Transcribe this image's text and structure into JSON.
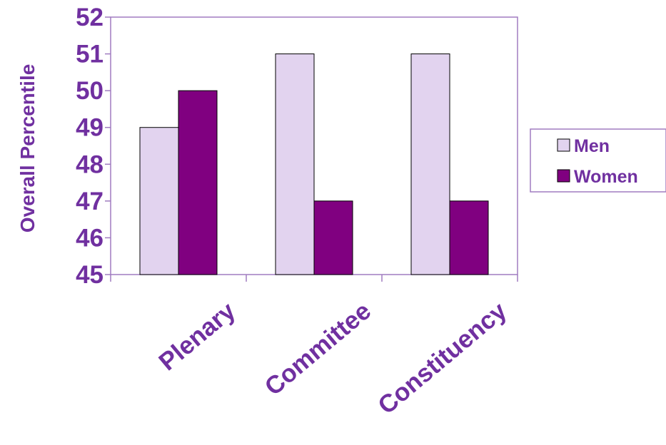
{
  "chart_data": {
    "type": "bar",
    "title": "",
    "xlabel": "",
    "ylabel": "Overall Percentile",
    "categories": [
      "Plenary",
      "Committee",
      "Constituency"
    ],
    "series": [
      {
        "name": "Men",
        "values": [
          49,
          51,
          51
        ],
        "color": "#e2d3ef"
      },
      {
        "name": "Women",
        "values": [
          50,
          47,
          47
        ],
        "color": "#800080"
      }
    ],
    "ylim": [
      45,
      52
    ],
    "yticks": [
      45,
      46,
      47,
      48,
      49,
      50,
      51,
      52
    ],
    "grid": false,
    "legend": "right",
    "text_color": "#7030a0",
    "axis_color": "#a07cc0"
  }
}
